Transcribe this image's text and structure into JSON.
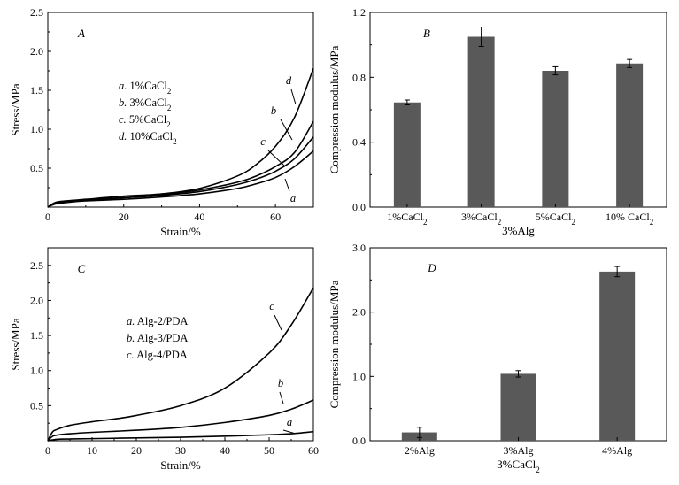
{
  "chart_data": [
    {
      "panel": "A",
      "type": "line",
      "xlabel": "Strain/%",
      "ylabel": "Stress/MPa",
      "xlim": [
        0,
        70
      ],
      "ylim": [
        0,
        2.5
      ],
      "xticks": [
        0,
        20,
        40,
        60
      ],
      "yticks": [
        0.5,
        1.0,
        1.5,
        2.0,
        2.5
      ],
      "ytick_labels": [
        "0.5",
        "1.0",
        "1.5",
        "2.0",
        "2.5"
      ],
      "legend": [
        {
          "letter": "a.",
          "text": " 1%CaCl",
          "sub": "2"
        },
        {
          "letter": "b.",
          "text": " 3%CaCl",
          "sub": "2"
        },
        {
          "letter": "c.",
          "text": " 5%CaCl",
          "sub": "2"
        },
        {
          "letter": "d.",
          "text": " 10%CaCl",
          "sub": "2"
        }
      ],
      "series": [
        {
          "name": "a",
          "x": [
            0,
            2,
            5,
            10,
            20,
            30,
            40,
            50,
            55,
            60,
            65,
            70
          ],
          "y": [
            0,
            0.04,
            0.06,
            0.08,
            0.1,
            0.13,
            0.17,
            0.24,
            0.3,
            0.38,
            0.52,
            0.72
          ]
        },
        {
          "name": "b",
          "x": [
            0,
            2,
            5,
            10,
            20,
            30,
            40,
            50,
            55,
            60,
            65,
            70
          ],
          "y": [
            0,
            0.05,
            0.07,
            0.09,
            0.12,
            0.16,
            0.22,
            0.32,
            0.4,
            0.52,
            0.7,
            1.1
          ]
        },
        {
          "name": "c",
          "x": [
            0,
            2,
            5,
            10,
            20,
            30,
            40,
            50,
            55,
            60,
            65,
            70
          ],
          "y": [
            0,
            0.05,
            0.07,
            0.09,
            0.12,
            0.15,
            0.2,
            0.29,
            0.36,
            0.46,
            0.62,
            0.9
          ]
        },
        {
          "name": "d",
          "x": [
            0,
            2,
            5,
            10,
            20,
            30,
            40,
            50,
            55,
            60,
            65,
            70
          ],
          "y": [
            0,
            0.06,
            0.08,
            0.1,
            0.14,
            0.17,
            0.24,
            0.4,
            0.55,
            0.78,
            1.15,
            1.78
          ]
        }
      ]
    },
    {
      "panel": "B",
      "type": "bar",
      "xlabel": "3%Alg",
      "ylabel": "Compression modulus/MPa",
      "ylim": [
        0,
        1.2
      ],
      "yticks": [
        0.0,
        0.4,
        0.8,
        1.2
      ],
      "ytick_labels": [
        "0.0",
        "0.4",
        "0.8",
        "1.2"
      ],
      "categories": [
        {
          "text": "1%CaCl",
          "sub": "2"
        },
        {
          "text": "3%CaCl",
          "sub": "2"
        },
        {
          "text": "5%CaCl",
          "sub": "2"
        },
        {
          "text": "10% CaCl",
          "sub": "2"
        }
      ],
      "values": [
        0.645,
        1.05,
        0.84,
        0.885
      ],
      "errors": [
        0.015,
        0.06,
        0.025,
        0.025
      ]
    },
    {
      "panel": "C",
      "type": "line",
      "xlabel": "Strain/%",
      "ylabel": "Stress/MPa",
      "xlim": [
        0,
        60
      ],
      "ylim": [
        0,
        2.75
      ],
      "xticks": [
        0,
        10,
        20,
        30,
        40,
        50,
        60
      ],
      "yticks": [
        0.5,
        1.0,
        1.5,
        2.0,
        2.5
      ],
      "ytick_labels": [
        "0.5",
        "1.0",
        "1.5",
        "2.0",
        "2.5"
      ],
      "legend": [
        {
          "letter": "a.",
          "text": " Alg-2/PDA",
          "sub": ""
        },
        {
          "letter": "b.",
          "text": " Alg-3/PDA",
          "sub": ""
        },
        {
          "letter": "c.",
          "text": " Alg-4/PDA",
          "sub": ""
        }
      ],
      "series": [
        {
          "name": "a",
          "x": [
            0,
            2,
            5,
            10,
            20,
            30,
            40,
            50,
            55,
            60
          ],
          "y": [
            0,
            0.02,
            0.025,
            0.03,
            0.04,
            0.05,
            0.065,
            0.085,
            0.1,
            0.13
          ]
        },
        {
          "name": "b",
          "x": [
            0,
            1,
            2,
            5,
            10,
            20,
            30,
            40,
            50,
            55,
            60
          ],
          "y": [
            0,
            0.06,
            0.08,
            0.1,
            0.12,
            0.15,
            0.19,
            0.26,
            0.36,
            0.45,
            0.58
          ]
        },
        {
          "name": "c",
          "x": [
            0,
            1,
            2,
            5,
            10,
            15,
            20,
            30,
            40,
            50,
            55,
            60
          ],
          "y": [
            0,
            0.12,
            0.16,
            0.22,
            0.27,
            0.31,
            0.36,
            0.5,
            0.75,
            1.25,
            1.65,
            2.18
          ]
        }
      ]
    },
    {
      "panel": "D",
      "type": "bar",
      "xlabel": "3%CaCl",
      "xlabel_sub": "2",
      "ylabel": "Compression modulus/MPa",
      "ylim": [
        0,
        3.0
      ],
      "yticks": [
        0.0,
        1.0,
        2.0,
        3.0
      ],
      "ytick_labels": [
        "0.0",
        "1.0",
        "2.0",
        "3.0"
      ],
      "categories": [
        {
          "text": "2%Alg",
          "sub": ""
        },
        {
          "text": "3%Alg",
          "sub": ""
        },
        {
          "text": "4%Alg",
          "sub": ""
        }
      ],
      "values": [
        0.13,
        1.04,
        2.63
      ],
      "errors": [
        0.08,
        0.05,
        0.08
      ]
    }
  ]
}
